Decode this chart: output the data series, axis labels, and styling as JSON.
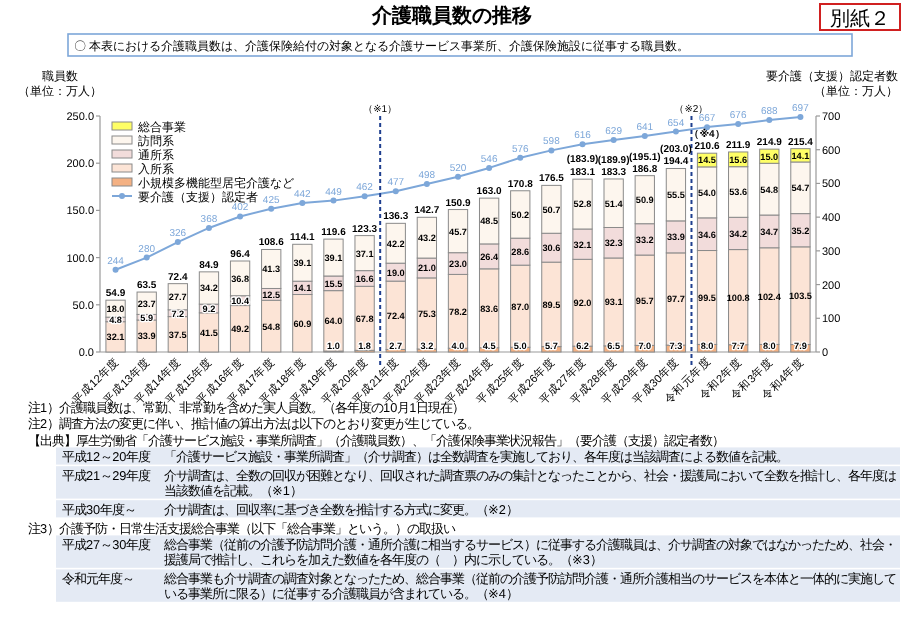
{
  "chart_data": {
    "type": "bar",
    "stacked": true,
    "title": "介護職員数の推移",
    "subtitle": "〇 本表における介護職員数は、介護保険給付の対象となる介護サービス事業所、介護保険施設に従事する職員数。",
    "ylabel": "職員数（単位：万人）",
    "y2label": "要介護（支援）認定者数（単位：万人）",
    "categories": [
      "平成12年度",
      "平成13年度",
      "平成14年度",
      "平成15年度",
      "平成16年度",
      "平成17年度",
      "平成18年度",
      "平成19年度",
      "平成20年度",
      "平成21年度",
      "平成22年度",
      "平成23年度",
      "平成24年度",
      "平成25年度",
      "平成26年度",
      "平成27年度",
      "平成28年度",
      "平成29年度",
      "平成30年度",
      "令和元年度",
      "令和2年度",
      "令和3年度",
      "令和4年度"
    ],
    "series": [
      {
        "name": "小規模多機能型居宅介護など",
        "color": "#f4b183",
        "values": [
          null,
          null,
          null,
          null,
          null,
          null,
          null,
          1.0,
          1.8,
          2.7,
          3.2,
          4.0,
          4.5,
          5.0,
          5.7,
          6.2,
          6.5,
          7.0,
          7.3,
          8.0,
          7.7,
          8.0,
          7.9
        ],
        "value_labels": [
          null,
          null,
          null,
          null,
          null,
          null,
          null,
          "1.0",
          "1.8",
          "2.7",
          "3.2",
          "4.0",
          "4.5",
          "5.0",
          "5.7",
          "6.2",
          "6.5",
          "7.0",
          "7.3",
          "8.0",
          "7.7",
          "8.0",
          "7.9"
        ]
      },
      {
        "name": "入所系",
        "color": "#fce4d6",
        "values": [
          32.1,
          33.9,
          37.5,
          41.5,
          49.2,
          54.8,
          60.9,
          64.0,
          67.8,
          72.4,
          75.3,
          78.2,
          83.6,
          87.0,
          89.5,
          92.0,
          93.1,
          95.7,
          97.7,
          99.5,
          100.8,
          102.4,
          103.5
        ],
        "value_labels": [
          "32.1",
          "33.9",
          "37.5",
          "41.5",
          "49.2",
          "54.8",
          "60.9",
          "64.0",
          "67.8",
          "72.4",
          "75.3",
          "78.2",
          "83.6",
          "87.0",
          "89.5",
          "92.0",
          "93.1",
          "95.7",
          "97.7",
          "99.5",
          "100.8",
          "102.4",
          "103.5"
        ]
      },
      {
        "name": "通所系",
        "color": "#f2dcdb",
        "values": [
          4.8,
          5.9,
          7.2,
          9.2,
          10.4,
          12.5,
          14.1,
          15.5,
          16.6,
          19.0,
          21.0,
          23.0,
          26.4,
          28.6,
          30.6,
          32.1,
          32.3,
          33.2,
          33.9,
          34.6,
          34.2,
          34.7,
          35.2
        ],
        "value_labels": [
          "4.8",
          "5.9",
          "7.2",
          "9.2",
          "10.4",
          "12.5",
          "14.1",
          "15.5",
          "16.6",
          "19.0",
          "21.0",
          "23.0",
          "26.4",
          "28.6",
          "30.6",
          "32.1",
          "32.3",
          "33.2",
          "33.9",
          "34.6",
          "34.2",
          "34.7",
          "35.2"
        ]
      },
      {
        "name": "訪問系",
        "color": "#fdf6ee",
        "values": [
          18.0,
          23.7,
          27.7,
          34.2,
          36.8,
          41.3,
          39.1,
          39.1,
          37.1,
          42.2,
          43.2,
          45.7,
          48.5,
          50.2,
          50.7,
          52.8,
          51.4,
          50.9,
          55.5,
          54.0,
          53.6,
          54.8,
          54.7
        ],
        "value_labels": [
          "18.0",
          "23.7",
          "27.7",
          "34.2",
          "36.8",
          "41.3",
          "39.1",
          "39.1",
          "37.1",
          "42.2",
          "43.2",
          "45.7",
          "48.5",
          "50.2",
          "50.7",
          "52.8",
          "51.4",
          "50.9",
          "55.5",
          "54.0",
          "53.6",
          "54.8",
          "54.7"
        ]
      },
      {
        "name": "総合事業",
        "color": "#ffff66",
        "values": [
          null,
          null,
          null,
          null,
          null,
          null,
          null,
          null,
          null,
          null,
          null,
          null,
          null,
          null,
          null,
          null,
          null,
          null,
          null,
          14.5,
          15.6,
          15.0,
          14.1
        ],
        "value_labels": [
          null,
          null,
          null,
          null,
          null,
          null,
          null,
          null,
          null,
          null,
          null,
          null,
          null,
          null,
          null,
          null,
          null,
          null,
          null,
          "14.5",
          "15.6",
          "15.0",
          "14.1"
        ]
      },
      {
        "name": "要介護（支援）認定者",
        "type": "line",
        "axis": "y2",
        "color": "#7da7d9",
        "values": [
          244,
          280,
          326,
          368,
          402,
          425,
          442,
          449,
          462,
          477,
          498,
          520,
          546,
          576,
          598,
          616,
          629,
          641,
          654,
          667,
          676,
          688,
          697
        ]
      }
    ],
    "totals": [
      "54.9",
      "63.5",
      "72.4",
      "84.9",
      "96.4",
      "108.6",
      "114.1",
      "119.6",
      "123.3",
      "136.3",
      "142.7",
      "150.9",
      "163.0",
      "170.8",
      "176.5",
      "183.1",
      "183.3",
      "186.8",
      "194.4",
      "210.6",
      "211.9",
      "214.9",
      "215.4"
    ],
    "ylim": [
      0,
      250
    ],
    "yticks": [
      {
        "value": 0,
        "label": "0.0"
      },
      {
        "value": 50,
        "label": "50.0"
      },
      {
        "value": 100,
        "label": "100.0"
      },
      {
        "value": 150,
        "label": "150.0"
      },
      {
        "value": 200,
        "label": "200.0"
      },
      {
        "value": 250,
        "label": "250.0"
      }
    ],
    "y2lim": [
      0,
      700
    ],
    "y2ticks": [
      0,
      100,
      200,
      300,
      400,
      500,
      600,
      700
    ],
    "legend": "top left",
    "data_labels": true,
    "marker": "circle",
    "annotations": [
      "別紙２",
      "（※1）",
      "（※2）",
      {
        "text": "(183.9)",
        "x": "平成27年度",
        "y": 183.9
      },
      {
        "text": "(189.9)",
        "x": "平成28年度",
        "y": 183.3
      },
      {
        "text": "(195.1)",
        "x": "平成29年度",
        "y": 186.8
      },
      {
        "text": "(203.0)",
        "x": "平成30年度",
        "y": 194.4
      },
      {
        "text": "（※4）",
        "x": "令和元年度",
        "y": 210.6
      },
      "注1）介護職員数は、常勤、非常勤を含めた実人員数。（各年度の10月1日現在）",
      "注2）調査方法の変更に伴い、推計値の算出方法は以下のとおり変更が生じている。",
      "【出典】厚生労働省「介護サービス施設・事業所調査」（介護職員数）、「介護保険事業状況報告」（要介護（支援）認定者数）",
      "平成12～20年度　「介護サービス施設・事業所調査」（介サ調査）は全数調査を実施しており、各年度は当該調査による数値を記載。",
      "平成21～29年度　介サ調査は、全数の回収が困難となり、回収された調査票のみの集計となったことから、社会・援護局において全数を推計し、各年度は当該数値を記載。（※1）",
      "平成30年度～　介サ調査は、回収率に基づき全数を推計する方式に変更。（※2）",
      "注3）介護予防・日常生活支援総合事業（以下「総合事業」という。）の取扱い",
      "平成27～30年度　総合事業（従前の介護予防訪問介護・通所介護に相当するサービス）に従事する介護職員は、介サ調査の対象ではなかったため、社会・援護局で推計し、これらを加えた数値を各年度の（　）内に示している。（※3）",
      "令和元年度～　総合事業も介サ調査の調査対象となったため、総合事業（従前の介護予防訪問介護・通所介護相当のサービスを本体と一体的に実施している事業所に限る）に従事する介護職員が含まれている。（※4）"
    ]
  }
}
